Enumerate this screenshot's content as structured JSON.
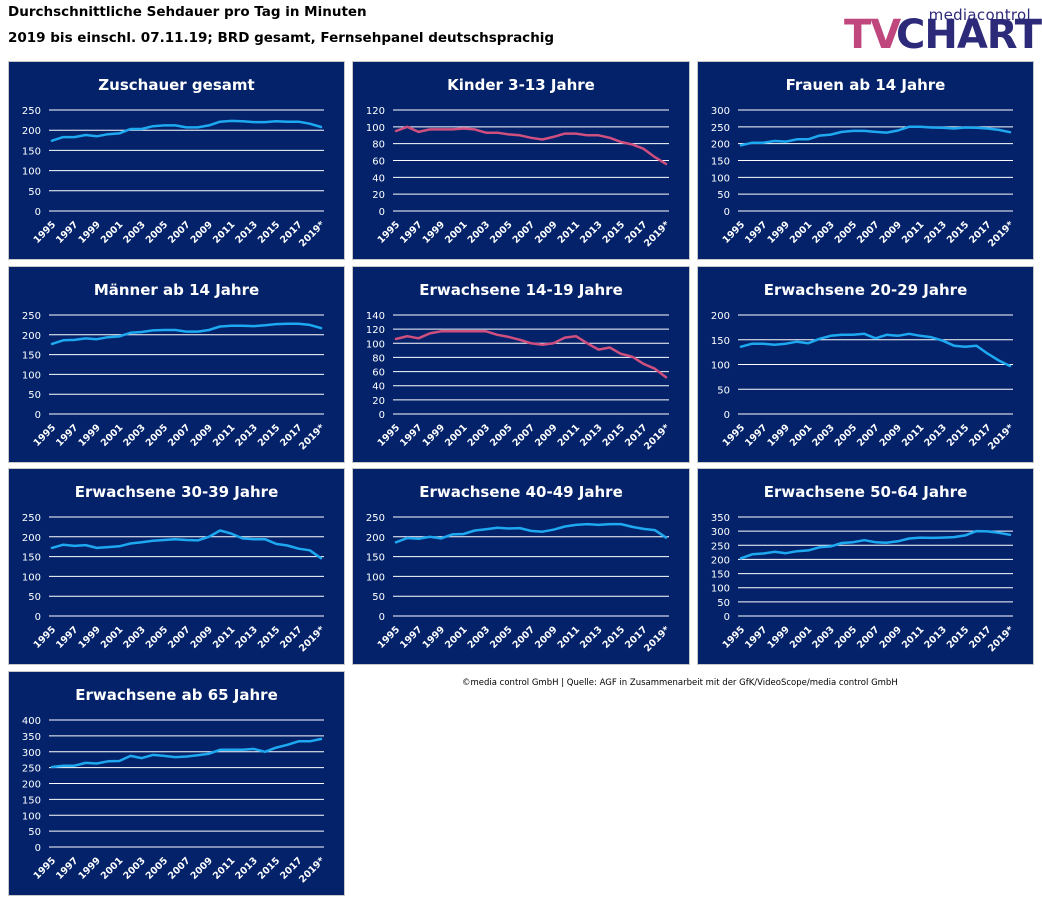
{
  "header": {
    "title": "Durchschnittliche Sehdauer pro Tag in Minuten",
    "subtitle": "2019 bis einschl. 07.11.19; BRD gesamt, Fernsehpanel deutschsprachig"
  },
  "logo": {
    "top": "mediacontrol",
    "left": "TV",
    "right": "CHARTS"
  },
  "source_note": "©media control GmbH | Quelle: AGF in Zusammenarbeit mit der GfK/VideoScope/media control GmbH",
  "colors": {
    "panel_bg": "#03226a",
    "grid": "#ffffff",
    "text": "#ffffff",
    "line_blue": "#1ea8ef",
    "line_pink": "#cf4f7e"
  },
  "chart_data": [
    {
      "type": "line",
      "title": "Zuschauer gesamt",
      "color": "blue",
      "x": [
        "1995",
        "1996",
        "1997",
        "1998",
        "1999",
        "2000",
        "2001",
        "2002",
        "2003",
        "2004",
        "2005",
        "2006",
        "2007",
        "2008",
        "2009",
        "2010",
        "2011",
        "2012",
        "2013",
        "2014",
        "2015",
        "2016",
        "2017",
        "2018",
        "2019*"
      ],
      "x_tick_labels": [
        "1995",
        "1997",
        "1999",
        "2001",
        "2003",
        "2005",
        "2007",
        "2009",
        "2011",
        "2013",
        "2015",
        "2017",
        "2019*"
      ],
      "ylim": [
        0,
        250
      ],
      "yticks": [
        0,
        50,
        100,
        150,
        200,
        250
      ],
      "values": [
        174,
        183,
        183,
        188,
        185,
        190,
        192,
        203,
        203,
        210,
        212,
        212,
        207,
        207,
        212,
        221,
        223,
        222,
        220,
        220,
        222,
        221,
        221,
        216,
        208
      ]
    },
    {
      "type": "line",
      "title": "Kinder 3-13 Jahre",
      "color": "pink",
      "x": [
        "1995",
        "1996",
        "1997",
        "1998",
        "1999",
        "2000",
        "2001",
        "2002",
        "2003",
        "2004",
        "2005",
        "2006",
        "2007",
        "2008",
        "2009",
        "2010",
        "2011",
        "2012",
        "2013",
        "2014",
        "2015",
        "2016",
        "2017",
        "2018",
        "2019*"
      ],
      "x_tick_labels": [
        "1995",
        "1997",
        "1999",
        "2001",
        "2003",
        "2005",
        "2007",
        "2009",
        "2011",
        "2013",
        "2015",
        "2017",
        "2019*"
      ],
      "ylim": [
        0,
        120
      ],
      "yticks": [
        0,
        20,
        40,
        60,
        80,
        100,
        120
      ],
      "values": [
        95,
        100,
        94,
        97,
        97,
        97,
        98,
        97,
        93,
        93,
        91,
        90,
        87,
        85,
        88,
        92,
        92,
        90,
        90,
        87,
        82,
        79,
        74,
        64,
        56
      ]
    },
    {
      "type": "line",
      "title": "Frauen ab 14 Jahre",
      "color": "blue",
      "x": [
        "1995",
        "1996",
        "1997",
        "1998",
        "1999",
        "2000",
        "2001",
        "2002",
        "2003",
        "2004",
        "2005",
        "2006",
        "2007",
        "2008",
        "2009",
        "2010",
        "2011",
        "2012",
        "2013",
        "2014",
        "2015",
        "2016",
        "2017",
        "2018",
        "2019*"
      ],
      "x_tick_labels": [
        "1995",
        "1997",
        "1999",
        "2001",
        "2003",
        "2005",
        "2007",
        "2009",
        "2011",
        "2013",
        "2015",
        "2017",
        "2019*"
      ],
      "ylim": [
        0,
        300
      ],
      "yticks": [
        0,
        50,
        100,
        150,
        200,
        250,
        300
      ],
      "values": [
        195,
        203,
        203,
        208,
        206,
        213,
        213,
        224,
        227,
        235,
        238,
        238,
        235,
        233,
        239,
        250,
        250,
        248,
        247,
        245,
        248,
        247,
        245,
        241,
        234
      ]
    },
    {
      "type": "line",
      "title": "Männer ab 14 Jahre",
      "color": "blue",
      "x": [
        "1995",
        "1996",
        "1997",
        "1998",
        "1999",
        "2000",
        "2001",
        "2002",
        "2003",
        "2004",
        "2005",
        "2006",
        "2007",
        "2008",
        "2009",
        "2010",
        "2011",
        "2012",
        "2013",
        "2014",
        "2015",
        "2016",
        "2017",
        "2018",
        "2019*"
      ],
      "x_tick_labels": [
        "1995",
        "1997",
        "1999",
        "2001",
        "2003",
        "2005",
        "2007",
        "2009",
        "2011",
        "2013",
        "2015",
        "2017",
        "2019*"
      ],
      "ylim": [
        0,
        250
      ],
      "yticks": [
        0,
        50,
        100,
        150,
        200,
        250
      ],
      "values": [
        177,
        186,
        187,
        191,
        189,
        194,
        196,
        205,
        207,
        211,
        212,
        212,
        208,
        208,
        212,
        221,
        223,
        223,
        222,
        224,
        227,
        228,
        228,
        225,
        217
      ]
    },
    {
      "type": "line",
      "title": "Erwachsene 14-19 Jahre",
      "color": "pink",
      "x": [
        "1995",
        "1996",
        "1997",
        "1998",
        "1999",
        "2000",
        "2001",
        "2002",
        "2003",
        "2004",
        "2005",
        "2006",
        "2007",
        "2008",
        "2009",
        "2010",
        "2011",
        "2012",
        "2013",
        "2014",
        "2015",
        "2016",
        "2017",
        "2018",
        "2019*"
      ],
      "x_tick_labels": [
        "1995",
        "1997",
        "1999",
        "2001",
        "2003",
        "2005",
        "2007",
        "2009",
        "2011",
        "2013",
        "2015",
        "2017",
        "2019*"
      ],
      "ylim": [
        0,
        140
      ],
      "yticks": [
        0,
        20,
        40,
        60,
        80,
        100,
        120,
        140
      ],
      "values": [
        106,
        110,
        107,
        114,
        117,
        117,
        117,
        117,
        117,
        112,
        109,
        105,
        100,
        98,
        100,
        108,
        110,
        100,
        91,
        94,
        85,
        81,
        71,
        64,
        52
      ]
    },
    {
      "type": "line",
      "title": "Erwachsene 20-29 Jahre",
      "color": "blue",
      "x": [
        "1995",
        "1996",
        "1997",
        "1998",
        "1999",
        "2000",
        "2001",
        "2002",
        "2003",
        "2004",
        "2005",
        "2006",
        "2007",
        "2008",
        "2009",
        "2010",
        "2011",
        "2012",
        "2013",
        "2014",
        "2015",
        "2016",
        "2017",
        "2018",
        "2019*"
      ],
      "x_tick_labels": [
        "1995",
        "1997",
        "1999",
        "2001",
        "2003",
        "2005",
        "2007",
        "2009",
        "2011",
        "2013",
        "2015",
        "2017",
        "2019*"
      ],
      "ylim": [
        0,
        200
      ],
      "yticks": [
        0,
        50,
        100,
        150,
        200
      ],
      "values": [
        136,
        142,
        142,
        140,
        142,
        146,
        143,
        152,
        158,
        160,
        160,
        162,
        153,
        160,
        158,
        162,
        158,
        155,
        148,
        138,
        136,
        138,
        122,
        108,
        97
      ]
    },
    {
      "type": "line",
      "title": "Erwachsene 30-39 Jahre",
      "color": "blue",
      "x": [
        "1995",
        "1996",
        "1997",
        "1998",
        "1999",
        "2000",
        "2001",
        "2002",
        "2003",
        "2004",
        "2005",
        "2006",
        "2007",
        "2008",
        "2009",
        "2010",
        "2011",
        "2012",
        "2013",
        "2014",
        "2015",
        "2016",
        "2017",
        "2018",
        "2019*"
      ],
      "x_tick_labels": [
        "1995",
        "1997",
        "1999",
        "2001",
        "2003",
        "2005",
        "2007",
        "2009",
        "2011",
        "2013",
        "2015",
        "2017",
        "2019*"
      ],
      "ylim": [
        0,
        250
      ],
      "yticks": [
        0,
        50,
        100,
        150,
        200,
        250
      ],
      "values": [
        172,
        180,
        177,
        179,
        172,
        174,
        176,
        183,
        186,
        190,
        192,
        194,
        192,
        191,
        200,
        216,
        208,
        196,
        194,
        194,
        182,
        178,
        170,
        166,
        146
      ]
    },
    {
      "type": "line",
      "title": "Erwachsene 40-49 Jahre",
      "color": "blue",
      "x": [
        "1995",
        "1996",
        "1997",
        "1998",
        "1999",
        "2000",
        "2001",
        "2002",
        "2003",
        "2004",
        "2005",
        "2006",
        "2007",
        "2008",
        "2009",
        "2010",
        "2011",
        "2012",
        "2013",
        "2014",
        "2015",
        "2016",
        "2017",
        "2018",
        "2019*"
      ],
      "x_tick_labels": [
        "1995",
        "1997",
        "1999",
        "2001",
        "2003",
        "2005",
        "2007",
        "2009",
        "2011",
        "2013",
        "2015",
        "2017",
        "2019*"
      ],
      "ylim": [
        0,
        250
      ],
      "yticks": [
        0,
        50,
        100,
        150,
        200,
        250
      ],
      "values": [
        186,
        197,
        195,
        200,
        196,
        206,
        207,
        216,
        219,
        223,
        221,
        222,
        215,
        213,
        218,
        226,
        230,
        232,
        230,
        232,
        232,
        225,
        220,
        217,
        198
      ]
    },
    {
      "type": "line",
      "title": "Erwachsene 50-64 Jahre",
      "color": "blue",
      "x": [
        "1995",
        "1996",
        "1997",
        "1998",
        "1999",
        "2000",
        "2001",
        "2002",
        "2003",
        "2004",
        "2005",
        "2006",
        "2007",
        "2008",
        "2009",
        "2010",
        "2011",
        "2012",
        "2013",
        "2014",
        "2015",
        "2016",
        "2017",
        "2018",
        "2019*"
      ],
      "x_tick_labels": [
        "1995",
        "1997",
        "1999",
        "2001",
        "2003",
        "2005",
        "2007",
        "2009",
        "2011",
        "2013",
        "2015",
        "2017",
        "2019*"
      ],
      "ylim": [
        0,
        350
      ],
      "yticks": [
        0,
        50,
        100,
        150,
        200,
        250,
        300,
        350
      ],
      "values": [
        204,
        218,
        221,
        227,
        222,
        229,
        232,
        243,
        246,
        258,
        261,
        268,
        261,
        259,
        264,
        274,
        277,
        276,
        277,
        279,
        285,
        300,
        299,
        294,
        287
      ]
    },
    {
      "type": "line",
      "title": "Erwachsene ab 65 Jahre",
      "color": "blue",
      "x": [
        "1995",
        "1996",
        "1997",
        "1998",
        "1999",
        "2000",
        "2001",
        "2002",
        "2003",
        "2004",
        "2005",
        "2006",
        "2007",
        "2008",
        "2009",
        "2010",
        "2011",
        "2012",
        "2013",
        "2014",
        "2015",
        "2016",
        "2017",
        "2018",
        "2019*"
      ],
      "x_tick_labels": [
        "1995",
        "1997",
        "1999",
        "2001",
        "2003",
        "2005",
        "2007",
        "2009",
        "2011",
        "2013",
        "2015",
        "2017",
        "2019*"
      ],
      "ylim": [
        0,
        400
      ],
      "yticks": [
        0,
        50,
        100,
        150,
        200,
        250,
        300,
        350,
        400
      ],
      "values": [
        252,
        256,
        256,
        265,
        263,
        270,
        271,
        287,
        280,
        290,
        287,
        283,
        285,
        289,
        294,
        306,
        306,
        306,
        309,
        300,
        313,
        322,
        333,
        333,
        340
      ]
    }
  ]
}
